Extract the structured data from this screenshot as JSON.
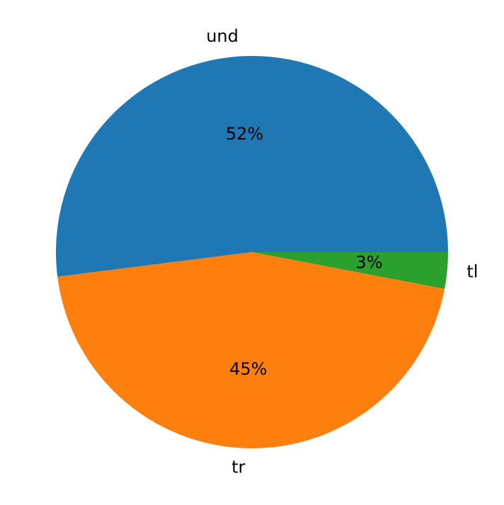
{
  "chart_data": {
    "type": "pie",
    "categories": [
      "und",
      "tr",
      "tl"
    ],
    "values": [
      52,
      45,
      3
    ],
    "value_labels": [
      "52%",
      "45%",
      "3%"
    ],
    "colors": [
      "#1f77b4",
      "#ff7f0e",
      "#2ca02c"
    ]
  }
}
